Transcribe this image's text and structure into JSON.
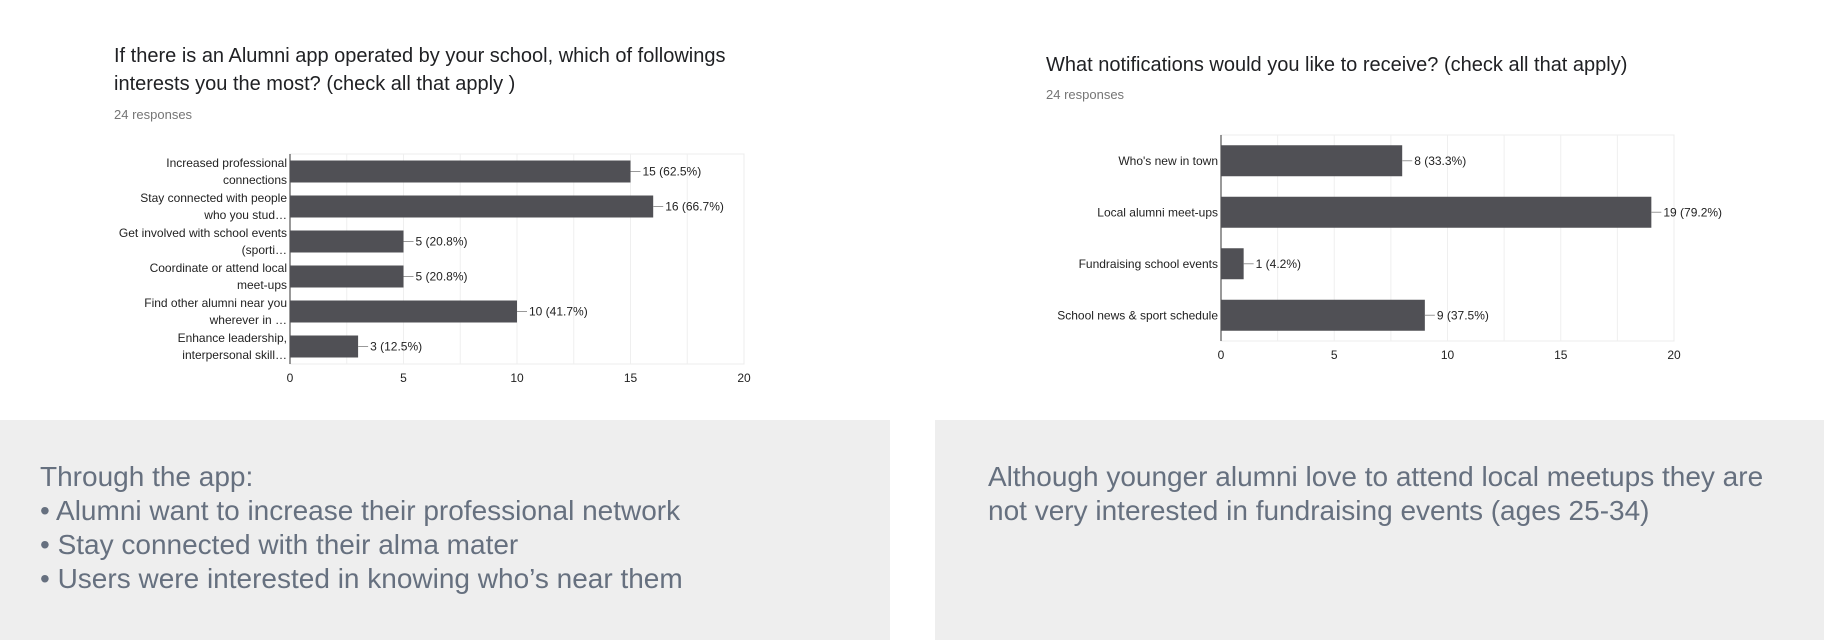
{
  "chart_data": [
    {
      "type": "bar",
      "orientation": "horizontal",
      "title": "If there is an Alumni app operated by your school, which of followings interests you the most? (check all that apply )",
      "subtitle": "24 responses",
      "categories": [
        [
          "Increased professional",
          "connections"
        ],
        [
          "Stay connected with people",
          "who you stud…"
        ],
        [
          "Get involved with school events",
          "(sporti…"
        ],
        [
          "Coordinate or attend local",
          "meet-ups"
        ],
        [
          "Find other alumni near you",
          "wherever in …"
        ],
        [
          "Enhance leadership,",
          "interpersonal skill…"
        ]
      ],
      "values": [
        15,
        16,
        5,
        5,
        10,
        3
      ],
      "data_labels": [
        "15 (62.5%)",
        "16 (66.7%)",
        "5 (20.8%)",
        "5 (20.8%)",
        "10 (41.7%)",
        "3 (12.5%)"
      ],
      "xlim": [
        0,
        20
      ],
      "xticks": [
        0,
        5,
        10,
        15,
        20
      ],
      "grid": true,
      "bar_color": "#505055"
    },
    {
      "type": "bar",
      "orientation": "horizontal",
      "title": "What notifications would you like to receive? (check all that apply)",
      "subtitle": "24 responses",
      "categories": [
        [
          "Who's new in town"
        ],
        [
          "Local alumni meet-ups"
        ],
        [
          "Fundraising school events"
        ],
        [
          "School news & sport schedule"
        ]
      ],
      "values": [
        8,
        19,
        1,
        9
      ],
      "data_labels": [
        "8 (33.3%)",
        "19 (79.2%)",
        "1 (4.2%)",
        "9 (37.5%)"
      ],
      "xlim": [
        0,
        20
      ],
      "xticks": [
        0,
        5,
        10,
        15,
        20
      ],
      "grid": true,
      "bar_color": "#505055"
    }
  ],
  "notes": {
    "left": {
      "lines": [
        "Through the app:",
        "• Alumni want to increase their professional network",
        "• Stay connected with their alma mater",
        "• Users were interested in knowing who’s near them"
      ]
    },
    "right": {
      "lines": [
        "Although younger alumni love to attend local meetups they are",
        "not very interested in fundraising events (ages 25-34)"
      ]
    }
  },
  "colors": {
    "note_bg": "#eeeeee",
    "note_text": "#66707f",
    "bar": "#505055"
  }
}
